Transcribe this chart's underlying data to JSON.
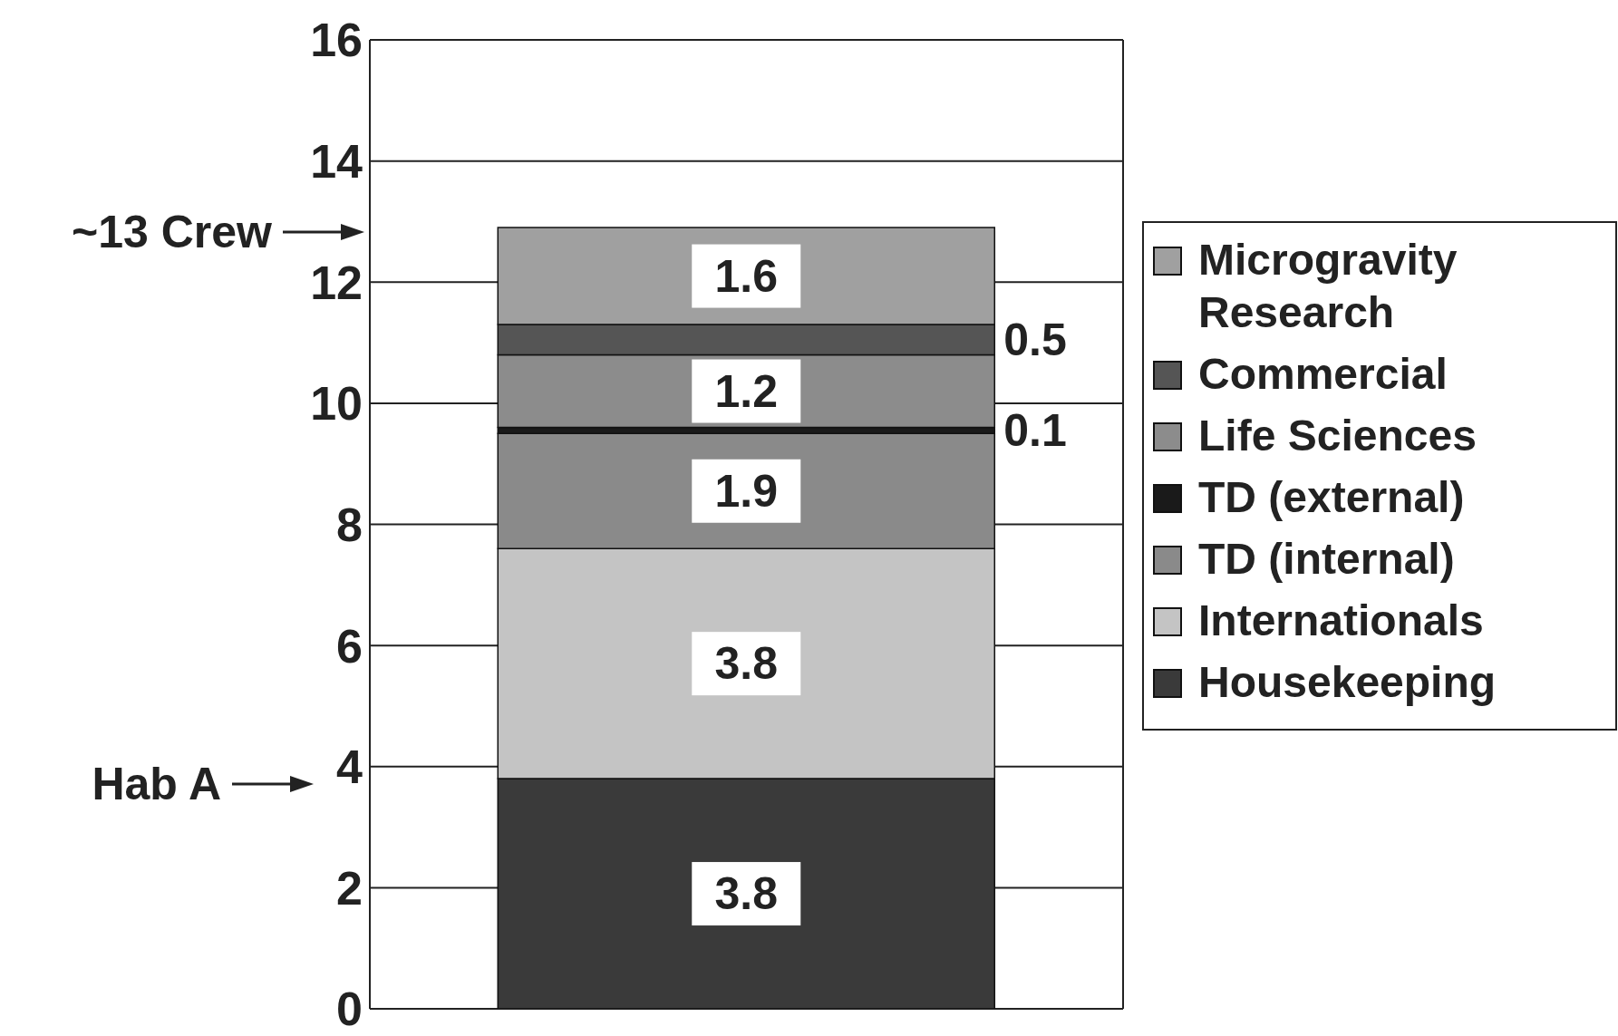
{
  "chart_data": {
    "type": "bar",
    "stacked": true,
    "categories": [
      null
    ],
    "series": [
      {
        "name": "Housekeeping",
        "color": "#3a3a3a",
        "values": [
          3.8
        ]
      },
      {
        "name": "Internationals",
        "color": "#c4c4c4",
        "values": [
          3.8
        ]
      },
      {
        "name": "TD (internal)",
        "color": "#8a8a8a",
        "values": [
          1.9
        ]
      },
      {
        "name": "TD (external)",
        "color": "#1a1a1a",
        "values": [
          0.1
        ]
      },
      {
        "name": "Life Sciences",
        "color": "#8c8c8c",
        "values": [
          1.2
        ]
      },
      {
        "name": "Commercial",
        "color": "#555555",
        "values": [
          0.5
        ]
      },
      {
        "name": "Microgravity Research",
        "color": "#a0a0a0",
        "values": [
          1.6
        ]
      }
    ],
    "ylim": [
      0,
      16
    ],
    "yticks": [
      0,
      2,
      4,
      6,
      8,
      10,
      12,
      14,
      16
    ],
    "grid": "y",
    "legend": "right",
    "data_labels": true,
    "annotations": [
      "~13 Crew",
      "Hab A"
    ]
  }
}
